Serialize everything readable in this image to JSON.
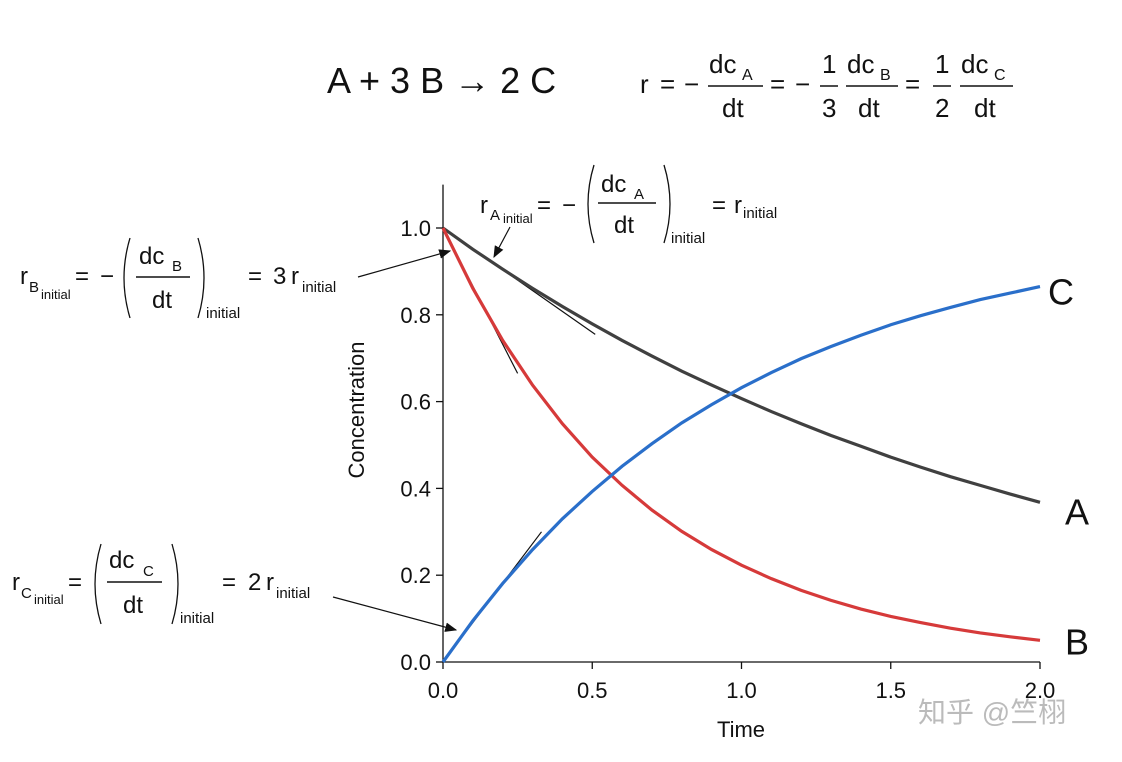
{
  "chart_data": {
    "type": "line",
    "reaction": "A + 3 B → 2 C",
    "symbols": {
      "r": "r",
      "dc": "dc",
      "dt": "dt",
      "eq": "=",
      "minus": "−",
      "initial": "initial",
      "one": "1",
      "two": "2",
      "three": "3"
    },
    "x_label": "Time",
    "y_label": "Concentration",
    "x": [
      0,
      0.1,
      0.2,
      0.3,
      0.4,
      0.5,
      0.6,
      0.7,
      0.8,
      0.9,
      1.0,
      1.1,
      1.2,
      1.3,
      1.4,
      1.5,
      1.6,
      1.7,
      1.8,
      1.9,
      2.0
    ],
    "series": [
      {
        "name": "A",
        "color": "#404040",
        "values": [
          1,
          0.951,
          0.905,
          0.861,
          0.819,
          0.779,
          0.741,
          0.705,
          0.67,
          0.638,
          0.607,
          0.577,
          0.549,
          0.522,
          0.497,
          0.472,
          0.449,
          0.427,
          0.407,
          0.387,
          0.368
        ]
      },
      {
        "name": "B",
        "color": "#d63a3a",
        "values": [
          1,
          0.861,
          0.741,
          0.638,
          0.549,
          0.472,
          0.407,
          0.35,
          0.301,
          0.259,
          0.223,
          0.192,
          0.165,
          0.142,
          0.122,
          0.105,
          0.091,
          0.078,
          0.067,
          0.058,
          0.05
        ]
      },
      {
        "name": "C",
        "color": "#2a6fca",
        "values": [
          0,
          0.095,
          0.181,
          0.259,
          0.33,
          0.393,
          0.451,
          0.503,
          0.551,
          0.593,
          0.632,
          0.667,
          0.699,
          0.727,
          0.753,
          0.777,
          0.798,
          0.817,
          0.835,
          0.85,
          0.865
        ]
      }
    ],
    "tangents": [
      {
        "x": [
          0,
          0.51
        ],
        "y": [
          1,
          0.755
        ]
      },
      {
        "x": [
          0,
          0.25
        ],
        "y": [
          1,
          0.665
        ]
      },
      {
        "x": [
          0,
          0.33
        ],
        "y": [
          0,
          0.3
        ]
      }
    ],
    "tangent_color": "#111111",
    "xlim": [
      0,
      2
    ],
    "ylim": [
      0,
      1.1
    ],
    "xticks": [
      {
        "value": 0,
        "label": "0.0"
      },
      {
        "value": 0.5,
        "label": "0.5"
      },
      {
        "value": 1,
        "label": "1.0"
      },
      {
        "value": 1.5,
        "label": "1.5"
      },
      {
        "value": 2,
        "label": "2.0"
      }
    ],
    "yticks": [
      {
        "value": 0,
        "label": "0.0"
      },
      {
        "value": 0.2,
        "label": "0.2"
      },
      {
        "value": 0.4,
        "label": "0.4"
      },
      {
        "value": 0.6,
        "label": "0.6"
      },
      {
        "value": 0.8,
        "label": "0.8"
      },
      {
        "value": 1,
        "label": "1.0"
      }
    ],
    "watermark": "知乎 @竺栩"
  }
}
